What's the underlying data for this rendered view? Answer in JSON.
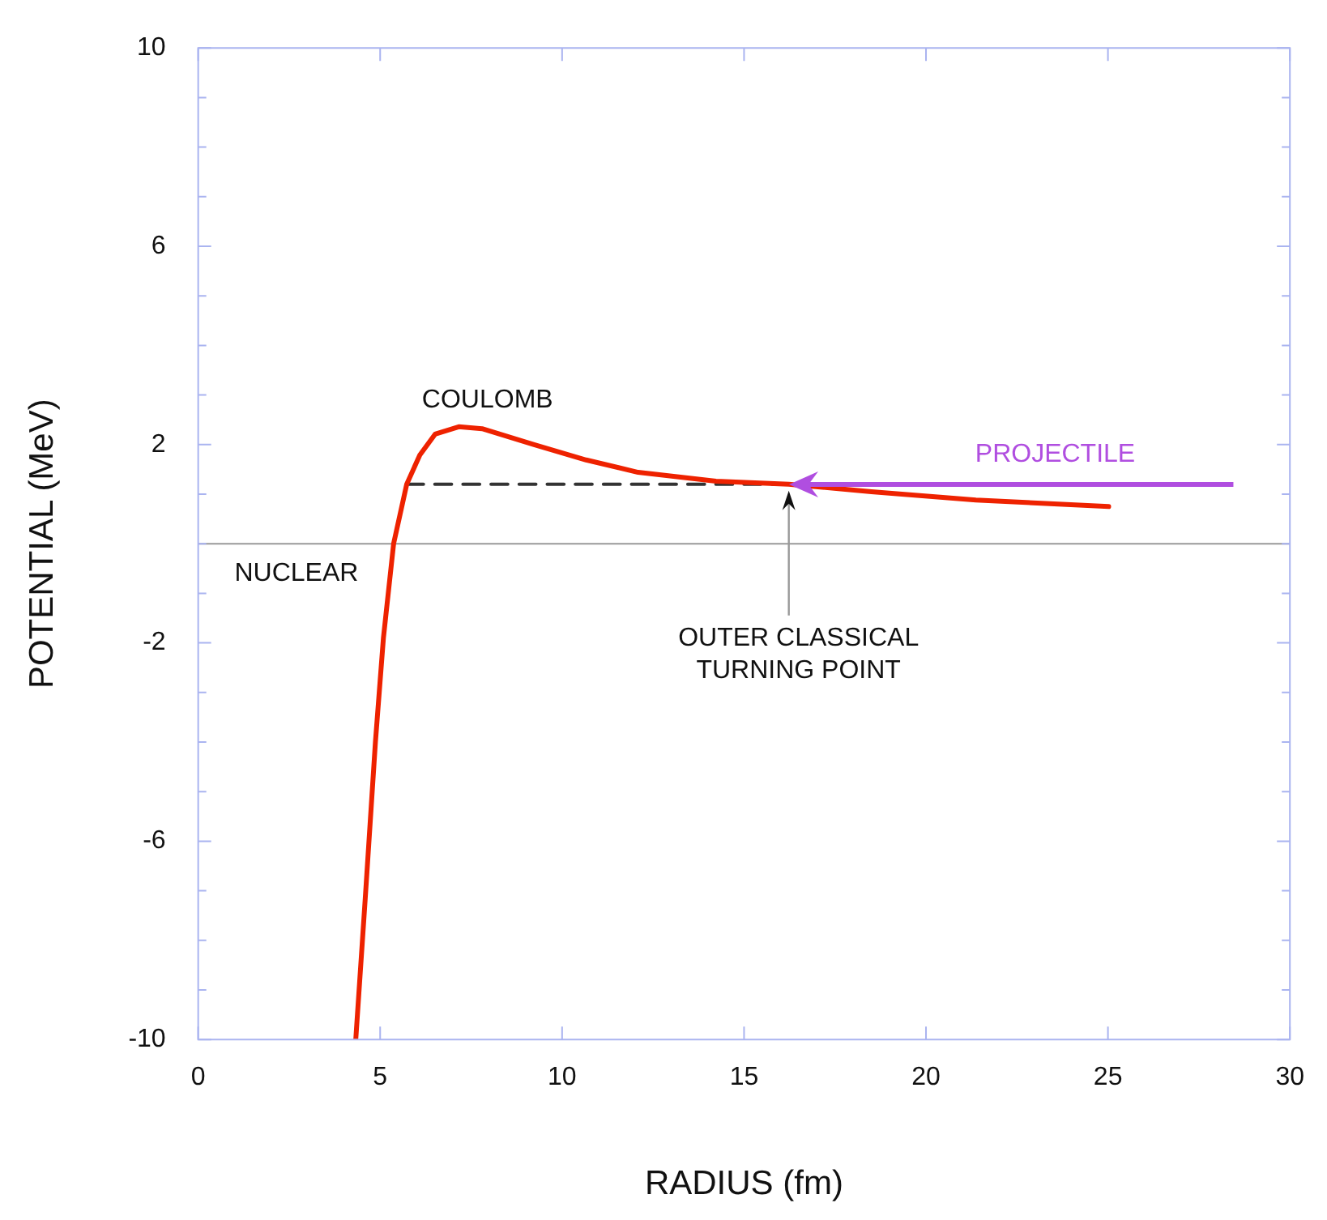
{
  "chart_data": {
    "type": "line",
    "xlabel": "RADIUS (fm)",
    "ylabel": "POTENTIAL (MeV)",
    "xlim": [
      0,
      30
    ],
    "xticks": [
      0,
      5,
      10,
      15,
      20,
      25,
      30
    ],
    "ylim": [
      -10,
      10
    ],
    "yticks": [
      -10,
      {
        "value": -9,
        "label": null
      },
      {
        "value": -8,
        "label": null
      },
      {
        "value": -7,
        "label": null
      },
      -6,
      {
        "value": -5,
        "label": null
      },
      {
        "value": -4,
        "label": null
      },
      {
        "value": -3,
        "label": null
      },
      -2,
      {
        "value": -1,
        "label": null
      },
      {
        "value": 0,
        "label": null
      },
      {
        "value": 1,
        "label": null
      },
      2,
      {
        "value": 3,
        "label": null
      },
      {
        "value": 4,
        "label": null
      },
      {
        "value": 5,
        "label": null
      },
      6,
      {
        "value": 7,
        "label": null
      },
      {
        "value": 8,
        "label": null
      },
      {
        "value": 9,
        "label": null
      },
      10
    ],
    "marker": "none",
    "series": [
      {
        "color": "#ee2200",
        "x": [
          4.33,
          4.59,
          4.87,
          5.09,
          5.37,
          5.73,
          6.09,
          6.51,
          7.16,
          7.8,
          9.23,
          10.66,
          12.09,
          14.23,
          16.23,
          18.5,
          21.37,
          25.02
        ],
        "values": [
          -10,
          -7.16,
          -4.0,
          -1.9,
          0.0,
          1.2,
          1.79,
          2.21,
          2.36,
          2.32,
          2.0,
          1.69,
          1.44,
          1.26,
          1.2,
          1.05,
          0.88,
          0.75
        ]
      },
      {
        "color": "#333333",
        "line_style": "dashed",
        "x": [
          5.73,
          16.23
        ],
        "values": [
          1.2,
          1.2
        ]
      }
    ],
    "ref_lines": [
      {
        "axis": "y",
        "value": 0,
        "color": "#999999"
      }
    ],
    "annotations": [
      "COULOMB",
      "NUCLEAR",
      "PROJECTILE",
      {
        "text": "OUTER CLASSICAL\nTURNING POINT",
        "x": 16.23,
        "y": 1.2
      }
    ]
  }
}
